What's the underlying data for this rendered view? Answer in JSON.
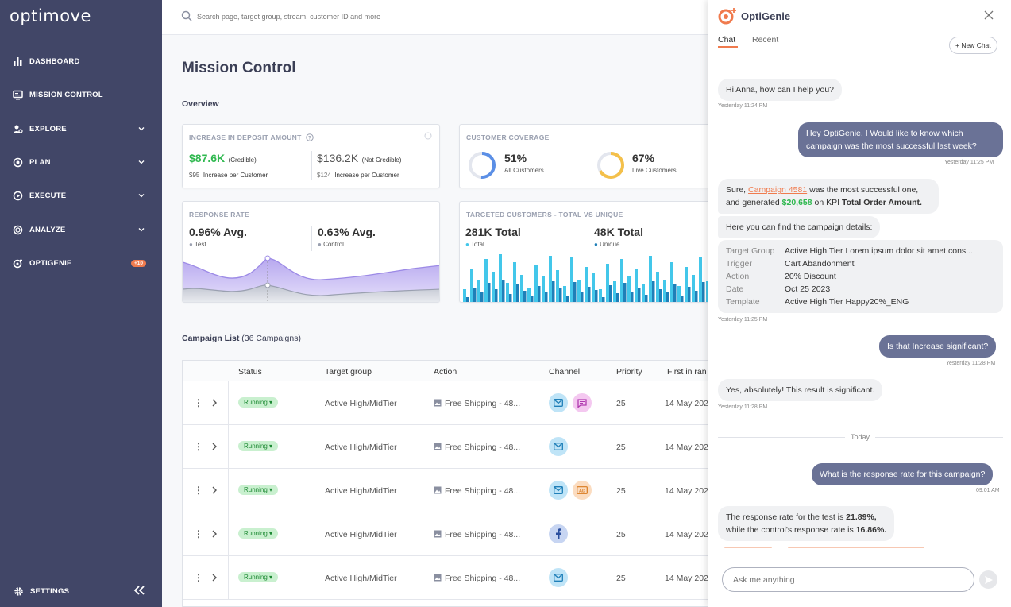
{
  "app": {
    "logo": "optimove"
  },
  "sidebar": {
    "items": [
      {
        "label": "DASHBOARD",
        "icon": "bar-chart-icon"
      },
      {
        "label": "MISSION CONTROL",
        "icon": "monitor-icon"
      },
      {
        "label": "EXPLORE",
        "icon": "explore-icon"
      },
      {
        "label": "PLAN",
        "icon": "target-icon"
      },
      {
        "label": "EXECUTE",
        "icon": "play-icon"
      },
      {
        "label": "ANALYZE",
        "icon": "analyze-icon"
      },
      {
        "label": "OPTIGENIE",
        "icon": "genie-icon",
        "badge": "+10"
      }
    ],
    "settings": "SETTINGS"
  },
  "search": {
    "placeholder": "Search page, target group, stream, customer ID and more"
  },
  "page": {
    "title": "Mission Control",
    "overview": "Overview"
  },
  "cards": {
    "deposit": {
      "title": "INCREASE IN DEPOSIT AMOUNT",
      "credible_value": "$87.6K",
      "credible_label": "(Credible)",
      "credible_sub_value": "$95",
      "credible_sub_label": "Increase per Customer",
      "noncred_value": "$136.2K",
      "noncred_label": "(Not Credible)",
      "noncred_sub_value": "$124",
      "noncred_sub_label": "Increase per Customer"
    },
    "coverage": {
      "title": "CUSTOMER COVERAGE",
      "all_pct": "51%",
      "all_label": "All Customers",
      "all_fraction": 0.51,
      "live_pct": "67%",
      "live_label": "Live Customers",
      "live_fraction": 0.67
    },
    "response": {
      "title": "RESPONSE RATE",
      "test_value": "0.96% Avg.",
      "test_label": "Test",
      "control_value": "0.63% Avg.",
      "control_label": "Control"
    },
    "targeted": {
      "title": "TARGETED CUSTOMERS - TOTAL VS UNIQUE",
      "total_value": "281K Total",
      "total_label": "Total",
      "unique_value": "48K Total",
      "unique_label": "Unique"
    }
  },
  "campaigns": {
    "title": "Campaign List",
    "count": "(36 Campaigns)",
    "columns": [
      "Status",
      "Target group",
      "Action",
      "Channel",
      "Priority",
      "First in ran"
    ],
    "rows": [
      {
        "status": "Running",
        "target": "Active High/MidTier",
        "action": "Free Shipping - 48...",
        "priority": "25",
        "date": "14 May 202",
        "channels": [
          "email",
          "sms"
        ]
      },
      {
        "status": "Running",
        "target": "Active High/MidTier",
        "action": "Free Shipping - 48...",
        "priority": "25",
        "date": "14 May 202",
        "channels": [
          "email"
        ]
      },
      {
        "status": "Running",
        "target": "Active High/MidTier",
        "action": "Free Shipping - 48...",
        "priority": "25",
        "date": "14 May 202",
        "channels": [
          "email",
          "ad"
        ]
      },
      {
        "status": "Running",
        "target": "Active High/MidTier",
        "action": "Free Shipping - 48...",
        "priority": "25",
        "date": "14 May 202",
        "channels": [
          "facebook"
        ]
      },
      {
        "status": "Running",
        "target": "Active High/MidTier",
        "action": "Free Shipping - 48...",
        "priority": "25",
        "date": "14 May 202",
        "channels": [
          "email"
        ]
      }
    ]
  },
  "chat": {
    "title": "OptiGenie",
    "tabs": [
      "Chat",
      "Recent"
    ],
    "new_chat": "+ New Chat",
    "m1": "Hi Anna, how can I help you?",
    "m1_time": "Yesterday 11:24 PM",
    "m2": "Hey OptiGenie, I  Would like to know which campaign was the most successful last week?",
    "m2_time": "Yesterday 11:25 PM",
    "m3_a": "Sure, ",
    "m3_link": "Campaign 4581",
    "m3_b": " was the most successful one,",
    "m3_c": "and generated ",
    "m3_value": "$20,658",
    "m3_d": " on KPI ",
    "m3_kpi": "Total Order Amount.",
    "m4": "Here you can find the campaign details:",
    "details": [
      {
        "key": "Target Group",
        "value": "Active High Tier Lorem ipsum dolor sit amet cons..."
      },
      {
        "key": "Trigger",
        "value": "Cart Abandonment"
      },
      {
        "key": "Action",
        "value": "20% Discount"
      },
      {
        "key": "Date",
        "value": "Oct 25 2023"
      },
      {
        "key": "Template",
        "value": "Active High Tier Happy20%_ENG"
      }
    ],
    "m4_time": "Yesterday 11:25 PM",
    "m5": "Is that Increase significant?",
    "m5_time": "Yesterday 11:28 PM",
    "m6": "Yes, absolutely! This result is significant.",
    "m6_time": "Yesterday 11:28 PM",
    "today": "Today",
    "m7": "What is the response rate for this campaign?",
    "m7_time": "09:01 AM",
    "m8_a": "The response rate for the test is ",
    "m8_test": "21.89%,",
    "m8_b": "while the control's response rate is ",
    "m8_control": "16.86%.",
    "input_placeholder": "Ask me anything"
  },
  "colors": {
    "sidebar": "#414667",
    "accent": "#f07b4e",
    "user_bubble": "#6a7296",
    "running": "#c9f0cf"
  }
}
